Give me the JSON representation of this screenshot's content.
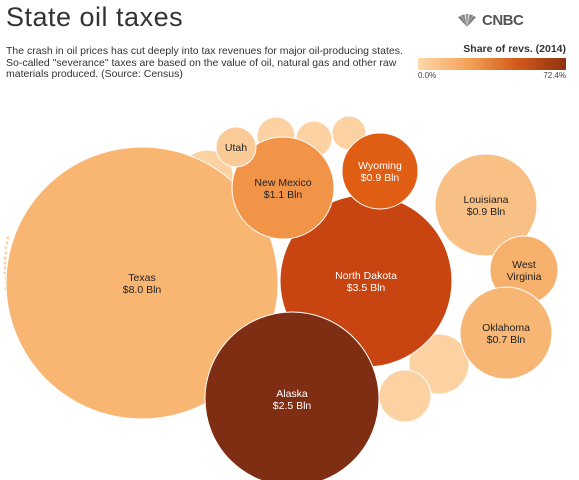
{
  "header": {
    "title": "State oil taxes",
    "logo": {
      "text": "CNBC",
      "icon": "peacock-icon"
    }
  },
  "subtitle": "The crash in oil prices has cut deeply into tax revenues for major oil-producing states. So-called \"severance\" taxes are based on the value of oil, natural gas and other raw materials produced. (Source: Census)",
  "legend": {
    "title": "Share of revs. (2014)",
    "min_label": "0.0%",
    "max_label": "72.4%",
    "colors": [
      "#fcd9a8",
      "#f5a25a",
      "#d45a1a",
      "#8c3310"
    ]
  },
  "chart_data": {
    "type": "bubble",
    "size_metric": "Severance tax revenue",
    "color_metric": "Share of revs. (2014)",
    "color_range": [
      0,
      72.4
    ],
    "labeled": [
      {
        "state": "Texas",
        "value_label": "$8.0 Bln",
        "value": 8.0,
        "color": "#f9b673"
      },
      {
        "state": "North Dakota",
        "value_label": "$3.5 Bln",
        "value": 3.5,
        "color": "#c84511"
      },
      {
        "state": "Alaska",
        "value_label": "$2.5 Bln",
        "value": 2.5,
        "color": "#7f2d13"
      },
      {
        "state": "New Mexico",
        "value_label": "$1.1 Bln",
        "value": 1.1,
        "color": "#f29448"
      },
      {
        "state": "Wyoming",
        "value_label": "$0.9 Bln",
        "value": 0.9,
        "color": "#e05d14"
      },
      {
        "state": "Louisiana",
        "value_label": "$0.9 Bln",
        "value": 0.9,
        "color": "#f9c086"
      },
      {
        "state": "West Virginia",
        "value_label": "",
        "value": 0.8,
        "color": "#f7b06b"
      },
      {
        "state": "Oklahoma",
        "value_label": "$0.7 Bln",
        "value": 0.7,
        "color": "#f8b674"
      },
      {
        "state": "Utah",
        "value_label": "",
        "value": 0.1,
        "color": "#fbcb97"
      }
    ],
    "unlabeled_states": 31,
    "unlabeled_color": "#fcd2a3"
  }
}
